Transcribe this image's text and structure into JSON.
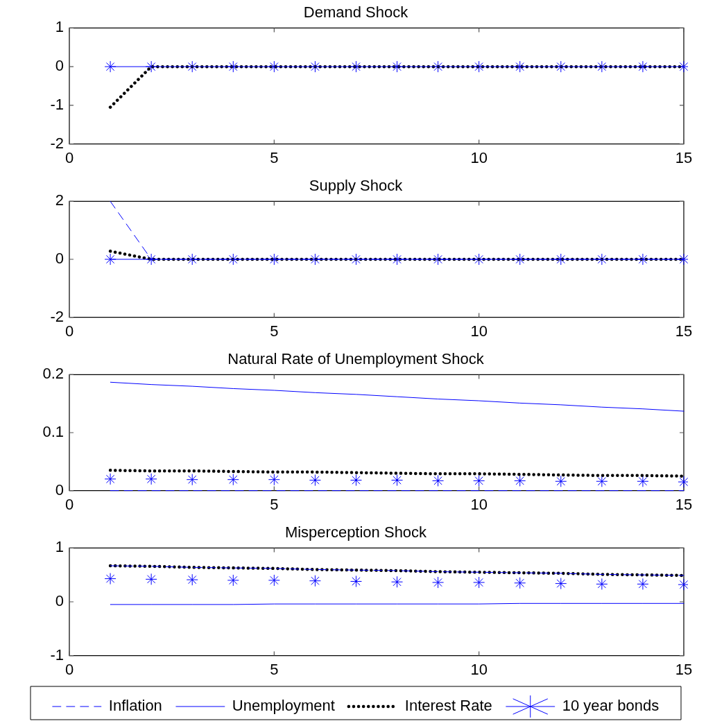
{
  "chart_data": [
    {
      "type": "line",
      "title": "Demand Shock",
      "x": [
        1,
        2,
        3,
        4,
        5,
        6,
        7,
        8,
        9,
        10,
        11,
        12,
        13,
        14,
        15
      ],
      "xlim": [
        0,
        15
      ],
      "xticks": [
        0,
        5,
        10,
        15
      ],
      "ylim": [
        -2,
        1
      ],
      "yticks": [
        -2,
        -1,
        0,
        1
      ],
      "grid": false,
      "legend": false,
      "series": [
        {
          "color": "#0000ff",
          "line_style": "dashed",
          "marker": "none",
          "values": [
            null,
            null,
            null,
            null,
            null,
            null,
            null,
            null,
            null,
            null,
            null,
            null,
            null,
            null,
            null
          ]
        },
        {
          "color": "#0000ff",
          "line_style": "solid",
          "marker": "none",
          "values": [
            0,
            0,
            0,
            0,
            0,
            0,
            0,
            0,
            0,
            0,
            0,
            0,
            0,
            0,
            0
          ]
        },
        {
          "color": "#000000",
          "line_style": "dotted",
          "marker": "none",
          "values": [
            -1.05,
            0,
            0,
            0,
            0,
            0,
            0,
            0,
            0,
            0,
            0,
            0,
            0,
            0,
            0
          ]
        },
        {
          "type": "scatter",
          "color": "#0000ff",
          "marker": "cross",
          "values": [
            0,
            0,
            0,
            0,
            0,
            0,
            0,
            0,
            0,
            0,
            0,
            0,
            0,
            0,
            0
          ]
        }
      ]
    },
    {
      "type": "line",
      "title": "Supply Shock",
      "x": [
        1,
        2,
        3,
        4,
        5,
        6,
        7,
        8,
        9,
        10,
        11,
        12,
        13,
        14,
        15
      ],
      "xlim": [
        0,
        15
      ],
      "xticks": [
        0,
        5,
        10,
        15
      ],
      "ylim": [
        -2,
        2
      ],
      "yticks": [
        -2,
        0,
        2
      ],
      "grid": false,
      "legend": false,
      "series": [
        {
          "color": "#0000ff",
          "line_style": "dashed",
          "marker": "none",
          "values": [
            2,
            0,
            0,
            0,
            0,
            0,
            0,
            0,
            0,
            0,
            0,
            0,
            0,
            0,
            0
          ]
        },
        {
          "color": "#0000ff",
          "line_style": "solid",
          "marker": "none",
          "values": [
            0,
            0,
            0,
            0,
            0,
            0,
            0,
            0,
            0,
            0,
            0,
            0,
            0,
            0,
            0
          ]
        },
        {
          "color": "#000000",
          "line_style": "dotted",
          "marker": "none",
          "values": [
            0.28,
            0,
            0,
            0,
            0,
            0,
            0,
            0,
            0,
            0,
            0,
            0,
            0,
            0,
            0
          ]
        },
        {
          "type": "scatter",
          "color": "#0000ff",
          "marker": "cross",
          "values": [
            0,
            0,
            0,
            0,
            0,
            0,
            0,
            0,
            0,
            0,
            0,
            0,
            0,
            0,
            0
          ]
        }
      ]
    },
    {
      "type": "line",
      "title": "Natural Rate of Unemployment Shock",
      "x": [
        1,
        2,
        3,
        4,
        5,
        6,
        7,
        8,
        9,
        10,
        11,
        12,
        13,
        14,
        15
      ],
      "xlim": [
        0,
        15
      ],
      "xticks": [
        0,
        5,
        10,
        15
      ],
      "ylim": [
        0,
        0.2
      ],
      "yticks": [
        0,
        0.1,
        0.2
      ],
      "grid": false,
      "legend": false,
      "series": [
        {
          "color": "#0000ff",
          "line_style": "dashed",
          "marker": "none",
          "values": [
            0,
            0,
            0,
            0,
            0,
            0,
            0,
            0,
            0,
            0,
            0,
            0,
            0,
            0,
            0
          ]
        },
        {
          "color": "#0000ff",
          "line_style": "solid",
          "marker": "none",
          "values": [
            0.187,
            0.183,
            0.18,
            0.176,
            0.173,
            0.169,
            0.166,
            0.162,
            0.158,
            0.155,
            0.151,
            0.148,
            0.144,
            0.141,
            0.137
          ]
        },
        {
          "color": "#000000",
          "line_style": "dotted",
          "marker": "none",
          "values": [
            0.035,
            0.034,
            0.034,
            0.033,
            0.032,
            0.032,
            0.031,
            0.03,
            0.029,
            0.029,
            0.028,
            0.027,
            0.026,
            0.026,
            0.025
          ]
        },
        {
          "type": "scatter",
          "color": "#0000ff",
          "marker": "cross",
          "values": [
            0.02,
            0.02,
            0.019,
            0.019,
            0.019,
            0.018,
            0.018,
            0.018,
            0.017,
            0.017,
            0.017,
            0.016,
            0.016,
            0.016,
            0.015
          ]
        }
      ]
    },
    {
      "type": "line",
      "title": "Misperception Shock",
      "x": [
        1,
        2,
        3,
        4,
        5,
        6,
        7,
        8,
        9,
        10,
        11,
        12,
        13,
        14,
        15
      ],
      "xlim": [
        0,
        15
      ],
      "xticks": [
        0,
        5,
        10,
        15
      ],
      "ylim": [
        -1,
        1
      ],
      "yticks": [
        -1,
        0,
        1
      ],
      "grid": false,
      "legend": "bottom",
      "series": [
        {
          "name": "Inflation",
          "color": "#0000ff",
          "line_style": "dashed",
          "marker": "none",
          "values": [
            0.67,
            0.66,
            0.64,
            0.63,
            0.62,
            0.6,
            0.59,
            0.58,
            0.56,
            0.55,
            0.54,
            0.53,
            0.51,
            0.5,
            0.49
          ]
        },
        {
          "name": "Unemployment",
          "color": "#0000ff",
          "line_style": "solid",
          "marker": "none",
          "values": [
            -0.05,
            -0.05,
            -0.05,
            -0.05,
            -0.04,
            -0.04,
            -0.04,
            -0.04,
            -0.04,
            -0.04,
            -0.03,
            -0.03,
            -0.03,
            -0.03,
            -0.03
          ]
        },
        {
          "name": "Interest Rate",
          "color": "#000000",
          "line_style": "dotted",
          "marker": "none",
          "values": [
            0.67,
            0.66,
            0.64,
            0.63,
            0.62,
            0.6,
            0.59,
            0.58,
            0.56,
            0.55,
            0.54,
            0.53,
            0.51,
            0.5,
            0.49
          ]
        },
        {
          "name": "10 year bonds",
          "type": "scatter",
          "color": "#0000ff",
          "marker": "cross",
          "values": [
            0.43,
            0.42,
            0.41,
            0.4,
            0.4,
            0.39,
            0.38,
            0.37,
            0.36,
            0.36,
            0.35,
            0.34,
            0.33,
            0.33,
            0.32
          ]
        }
      ]
    }
  ]
}
